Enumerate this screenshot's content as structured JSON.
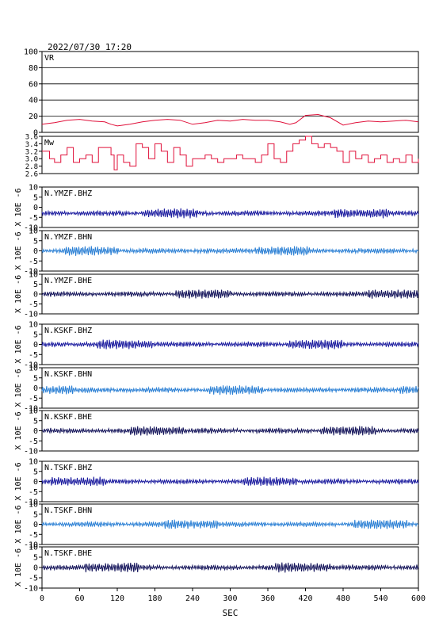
{
  "header": {
    "datetime": "2022/07/30  17:20"
  },
  "chart_data": {
    "type": "line",
    "xlabel": "SEC",
    "xlim": [
      0,
      600
    ],
    "xticks": [
      "0",
      "60",
      "120",
      "180",
      "240",
      "300",
      "360",
      "420",
      "480",
      "540",
      "600"
    ],
    "panels": [
      {
        "label": "VR",
        "ylim": [
          0,
          100
        ],
        "yticks": [
          "0",
          "20",
          "40",
          "60",
          "80",
          "100"
        ],
        "grid": true,
        "color": "#e0103a",
        "series": {
          "x": [
            0,
            20,
            40,
            60,
            80,
            100,
            110,
            120,
            140,
            160,
            180,
            200,
            220,
            240,
            260,
            280,
            300,
            320,
            340,
            360,
            380,
            395,
            405,
            420,
            440,
            460,
            480,
            500,
            520,
            540,
            560,
            580,
            600
          ],
          "y": [
            10,
            12,
            15,
            16,
            14,
            13,
            10,
            8,
            10,
            13,
            15,
            16,
            15,
            10,
            12,
            15,
            14,
            16,
            15,
            15,
            13,
            10,
            12,
            21,
            22,
            18,
            9,
            12,
            14,
            13,
            14,
            15,
            13
          ]
        }
      },
      {
        "label": "Mw",
        "ylim": [
          2.6,
          3.6
        ],
        "yticks": [
          "2.6",
          "2.8",
          "3.0",
          "3.2",
          "3.4",
          "3.6"
        ],
        "grid": false,
        "color": "#e0103a",
        "series": {
          "x": [
            0,
            12,
            20,
            30,
            40,
            50,
            60,
            70,
            80,
            90,
            100,
            110,
            115,
            120,
            130,
            140,
            150,
            160,
            170,
            180,
            190,
            200,
            210,
            220,
            230,
            240,
            250,
            260,
            270,
            280,
            290,
            300,
            310,
            320,
            330,
            340,
            350,
            360,
            370,
            380,
            390,
            400,
            410,
            420,
            430,
            440,
            450,
            460,
            470,
            480,
            490,
            500,
            510,
            520,
            530,
            540,
            550,
            560,
            570,
            580,
            590,
            600
          ],
          "y": [
            3.2,
            3.0,
            2.9,
            3.1,
            3.3,
            2.9,
            3.0,
            3.1,
            2.9,
            3.3,
            3.3,
            3.1,
            2.7,
            3.1,
            2.9,
            2.8,
            3.4,
            3.3,
            3.0,
            3.4,
            3.2,
            2.9,
            3.3,
            3.1,
            2.8,
            3.0,
            3.0,
            3.1,
            3.0,
            2.9,
            3.0,
            3.0,
            3.1,
            3.0,
            3.0,
            2.9,
            3.1,
            3.4,
            3.0,
            2.9,
            3.2,
            3.4,
            3.5,
            3.6,
            3.4,
            3.3,
            3.4,
            3.3,
            3.2,
            2.9,
            3.2,
            3.0,
            3.1,
            2.9,
            3.0,
            3.1,
            2.9,
            3.0,
            2.9,
            3.1,
            2.9,
            3.0
          ]
        }
      },
      {
        "label": "N.YMZF.BHZ",
        "ylim": [
          -10,
          10
        ],
        "yticks": [
          "-10",
          "-5",
          "0",
          "5",
          "10"
        ],
        "baseline": -3,
        "ylabel": "X 10E -6",
        "color": "#1a1a9e"
      },
      {
        "label": "N.YMZF.BHN",
        "ylim": [
          -10,
          10
        ],
        "yticks": [
          "-10",
          "-5",
          "0",
          "5",
          "10"
        ],
        "baseline": 0,
        "ylabel": "X 10E -6",
        "color": "#2a7fd4"
      },
      {
        "label": "N.YMZF.BHE",
        "ylim": [
          -10,
          10
        ],
        "yticks": [
          "-10",
          "-5",
          "0",
          "5",
          "10"
        ],
        "baseline": 0,
        "ylabel": "X 10E -6",
        "color": "#14145a"
      },
      {
        "label": "N.KSKF.BHZ",
        "ylim": [
          -10,
          10
        ],
        "yticks": [
          "-10",
          "-5",
          "0",
          "5",
          "10"
        ],
        "baseline": 0,
        "ylabel": "X 10E -6",
        "color": "#1a1a9e"
      },
      {
        "label": "N.KSKF.BHN",
        "ylim": [
          -10,
          10
        ],
        "yticks": [
          "-10",
          "-5",
          "0",
          "5",
          "10"
        ],
        "baseline": -1,
        "ylabel": "X 10E -6",
        "color": "#2a7fd4"
      },
      {
        "label": "N.KSKF.BHE",
        "ylim": [
          -10,
          10
        ],
        "yticks": [
          "-10",
          "-5",
          "0",
          "5",
          "10"
        ],
        "baseline": 0,
        "ylabel": "X 10E -6",
        "color": "#14145a"
      },
      {
        "label": "N.TSKF.BHZ",
        "ylim": [
          -10,
          10
        ],
        "yticks": [
          "-10",
          "-5",
          "0",
          "5",
          "10"
        ],
        "baseline": 0,
        "ylabel": "X 10E -6",
        "color": "#1a1a9e"
      },
      {
        "label": "N.TSKF.BHN",
        "ylim": [
          -10,
          10
        ],
        "yticks": [
          "-10",
          "-5",
          "0",
          "5",
          "10"
        ],
        "baseline": 0,
        "ylabel": "X 10E -6",
        "color": "#2a7fd4"
      },
      {
        "label": "N.TSKF.BHE",
        "ylim": [
          -10,
          10
        ],
        "yticks": [
          "-10",
          "-5",
          "0",
          "5",
          "10"
        ],
        "baseline": 0,
        "ylabel": "X 10E -6",
        "color": "#14145a"
      }
    ]
  }
}
